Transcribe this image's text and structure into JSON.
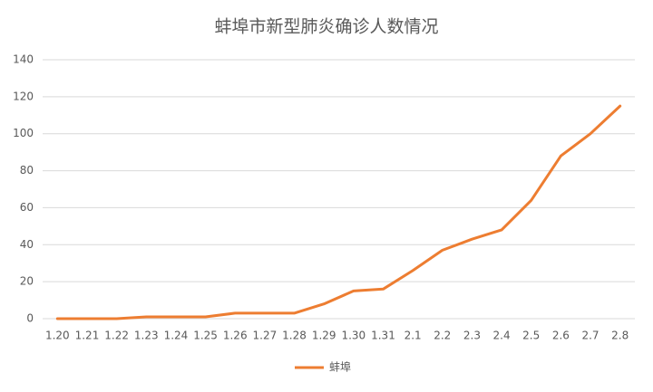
{
  "chart_data": {
    "type": "line",
    "title": "蚌埠市新型肺炎确诊人数情况",
    "categories": [
      "1.20",
      "1.21",
      "1.22",
      "1.23",
      "1.24",
      "1.25",
      "1.26",
      "1.27",
      "1.28",
      "1.29",
      "1.30",
      "1.31",
      "2.1",
      "2.2",
      "2.3",
      "2.4",
      "2.5",
      "2.6",
      "2.7",
      "2.8"
    ],
    "series": [
      {
        "name": "蚌埠",
        "color": "#ed7d31",
        "values": [
          0,
          0,
          0,
          1,
          1,
          1,
          3,
          3,
          3,
          8,
          15,
          16,
          26,
          37,
          43,
          48,
          64,
          88,
          100,
          115
        ]
      }
    ],
    "ylim": [
      0,
      140
    ],
    "yticks": [
      0,
      20,
      40,
      60,
      80,
      100,
      120,
      140
    ],
    "grid": true,
    "legend": "bottom"
  }
}
